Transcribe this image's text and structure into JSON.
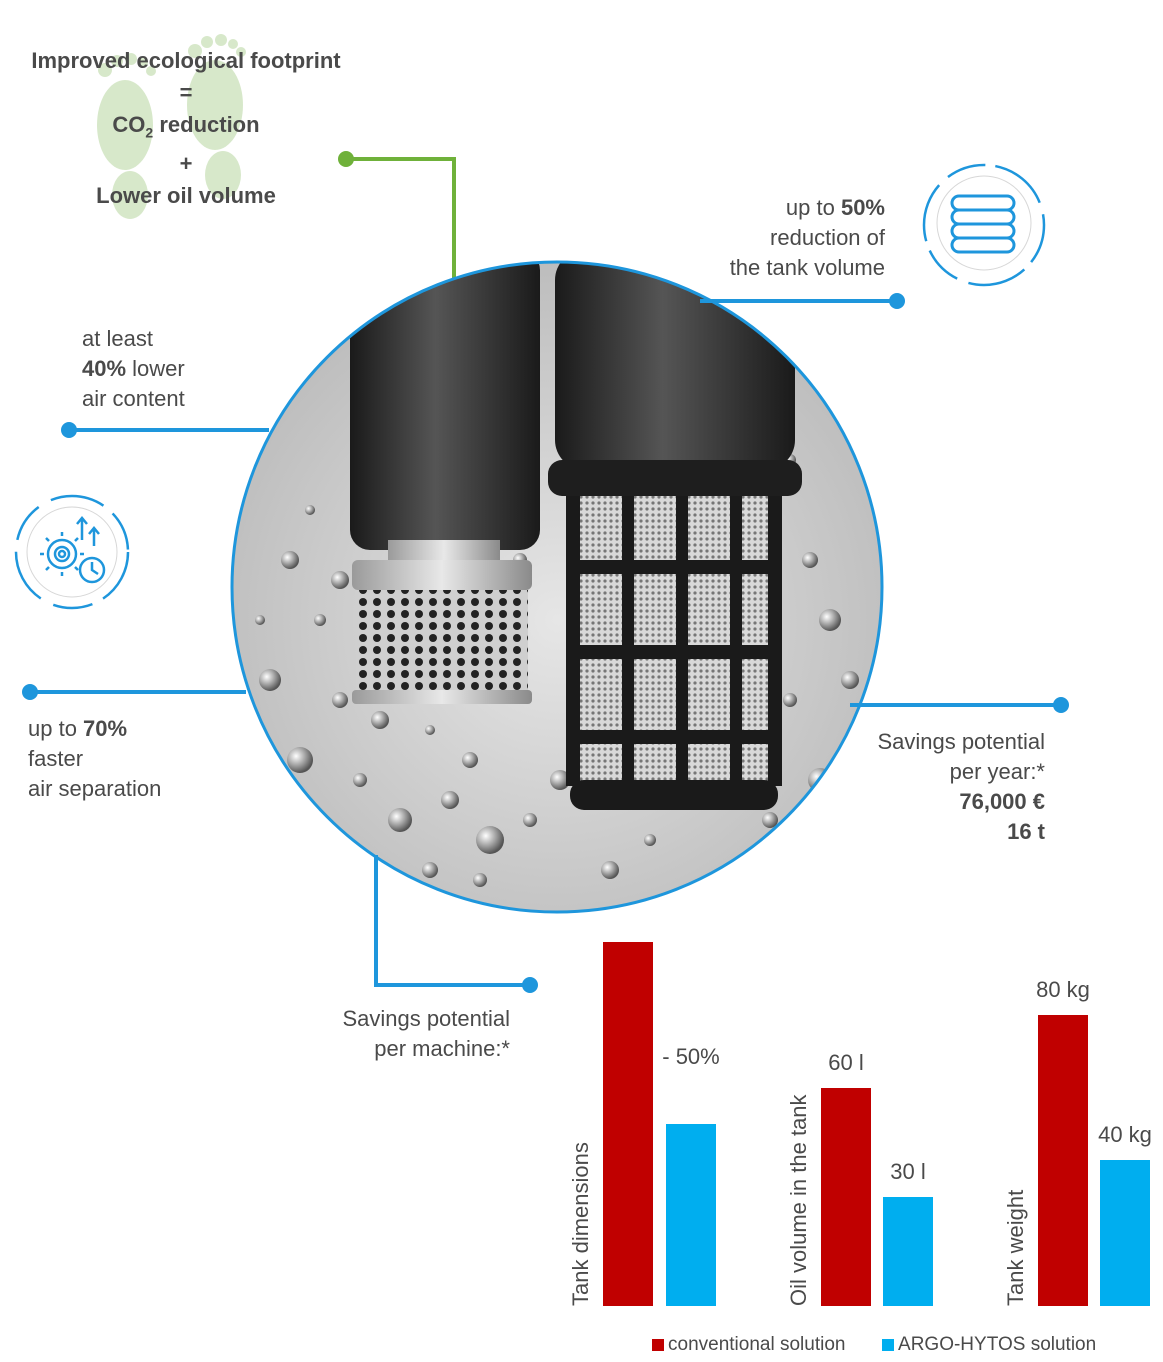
{
  "footprint": {
    "line1": "Improved ecological footprint",
    "eq": "=",
    "line2_a": "CO",
    "line2_sub": "2",
    "line2_b": " reduction",
    "plus": "+",
    "line3": "Lower oil volume"
  },
  "tank_volume": {
    "pre": "up to ",
    "value": "50%",
    "line2": "reduction of",
    "line3": "the tank volume"
  },
  "air_content": {
    "line1": "at least",
    "value": "40%",
    "suffix": " lower",
    "line3": "air content"
  },
  "air_separation": {
    "pre": "up to ",
    "value": "70%",
    "line2": "faster",
    "line3": "air separation"
  },
  "savings_year": {
    "line1": "Savings potential",
    "line2": "per year:*",
    "value1": "76,000 €",
    "value2": "16 t"
  },
  "savings_machine": {
    "line1": "Savings potential",
    "line2": "per machine:*"
  },
  "icons": {
    "coins": "coins-icon",
    "gears": "gears-clock-icon",
    "footprint": "footprint-icon"
  },
  "colors": {
    "conventional": "#c00000",
    "argo": "#00aeef",
    "accent_blue": "#1e96dc",
    "accent_green": "#6fb13a"
  },
  "chart_data": {
    "type": "bar",
    "groups": [
      {
        "category": "Tank dimensions",
        "conventional": 100,
        "argo": 50,
        "conventional_label": "",
        "argo_label": "- 50%"
      },
      {
        "category": "Oil volume in the tank",
        "conventional": 60,
        "argo": 30,
        "conventional_label": "60 l",
        "argo_label": "30 l"
      },
      {
        "category": "Tank weight",
        "conventional": 80,
        "argo": 40,
        "conventional_label": "80 kg",
        "argo_label": "40 kg"
      }
    ],
    "series": [
      {
        "name": "conventional solution",
        "color": "#c00000"
      },
      {
        "name": "ARGO-HYTOS solution",
        "color": "#00aeef"
      }
    ]
  }
}
